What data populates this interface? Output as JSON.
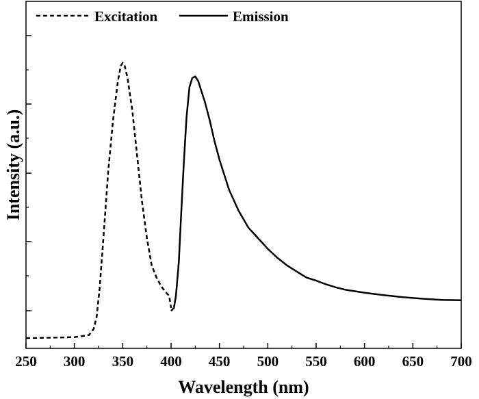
{
  "chart_data": {
    "type": "line",
    "xlabel": "Wavelength (nm)",
    "ylabel": "Intensity (a.u.)",
    "xlim": [
      250,
      700
    ],
    "ylim": [
      0,
      1
    ],
    "x_ticks": [
      250,
      300,
      350,
      400,
      450,
      500,
      550,
      600,
      650,
      700
    ],
    "x_tick_labels": [
      "250",
      "300",
      "350",
      "400",
      "450",
      "500",
      "550",
      "600",
      "650",
      "700"
    ],
    "y_tick_labels": false,
    "grid": false,
    "legend_position": "top-left",
    "series": [
      {
        "name": "Excitation",
        "style": "dashed",
        "color": "#000000",
        "x": [
          250,
          300,
          315,
          320,
          323,
          326,
          330,
          335,
          340,
          345,
          348,
          350,
          352,
          355,
          360,
          365,
          370,
          375,
          380,
          385,
          390,
          395,
          398,
          400
        ],
        "y": [
          0.0,
          0.003,
          0.01,
          0.03,
          0.07,
          0.16,
          0.33,
          0.55,
          0.72,
          0.85,
          0.9,
          0.91,
          0.9,
          0.86,
          0.75,
          0.6,
          0.45,
          0.33,
          0.24,
          0.2,
          0.17,
          0.15,
          0.14,
          0.1
        ]
      },
      {
        "name": "Emission",
        "style": "solid",
        "color": "#000000",
        "x": [
          400,
          403,
          405,
          408,
          410,
          413,
          416,
          419,
          422,
          425,
          428,
          430,
          435,
          440,
          445,
          450,
          455,
          460,
          470,
          480,
          490,
          500,
          510,
          520,
          530,
          540,
          550,
          560,
          570,
          580,
          590,
          600,
          620,
          640,
          660,
          680,
          700
        ],
        "y": [
          0.09,
          0.1,
          0.14,
          0.25,
          0.38,
          0.57,
          0.73,
          0.83,
          0.86,
          0.865,
          0.85,
          0.83,
          0.78,
          0.72,
          0.65,
          0.59,
          0.54,
          0.49,
          0.42,
          0.365,
          0.33,
          0.295,
          0.265,
          0.24,
          0.22,
          0.2,
          0.19,
          0.178,
          0.168,
          0.16,
          0.155,
          0.15,
          0.142,
          0.135,
          0.13,
          0.126,
          0.125
        ]
      }
    ]
  }
}
